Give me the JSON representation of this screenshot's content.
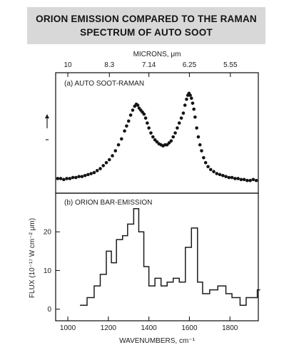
{
  "title": {
    "line1": "ORION EMISSION COMPARED TO THE RAMAN",
    "line2": "SPECTRUM OF AUTO SOOT"
  },
  "chart_data": [
    {
      "type": "scatter",
      "panel_label": "(a) AUTO SOOT-RAMAN",
      "top_axis_label": "MICRONS, μm",
      "top_ticks": [
        {
          "label": "10",
          "wavenumber": 1000
        },
        {
          "label": "8.3",
          "wavenumber": 1205
        },
        {
          "label": "7.14",
          "wavenumber": 1400
        },
        {
          "label": "6.25",
          "wavenumber": 1600
        },
        {
          "label": "5.55",
          "wavenumber": 1802
        }
      ],
      "xlim": [
        940,
        1940
      ],
      "ylabel": "",
      "y_unit": "relative intensity (arbitrary)",
      "ylim": [
        0,
        1
      ],
      "x": [
        950,
        965,
        980,
        995,
        1010,
        1025,
        1040,
        1055,
        1070,
        1085,
        1100,
        1115,
        1130,
        1145,
        1160,
        1175,
        1190,
        1205,
        1220,
        1235,
        1250,
        1265,
        1280,
        1290,
        1300,
        1310,
        1320,
        1330,
        1338,
        1345,
        1352,
        1360,
        1368,
        1376,
        1384,
        1392,
        1400,
        1410,
        1420,
        1430,
        1440,
        1450,
        1460,
        1470,
        1480,
        1490,
        1500,
        1510,
        1520,
        1530,
        1540,
        1550,
        1560,
        1570,
        1578,
        1586,
        1592,
        1598,
        1604,
        1610,
        1616,
        1622,
        1628,
        1636,
        1644,
        1652,
        1660,
        1670,
        1680,
        1692,
        1705,
        1720,
        1735,
        1750,
        1765,
        1780,
        1795,
        1810,
        1825,
        1840,
        1855,
        1870,
        1885,
        1900,
        1915,
        1930
      ],
      "y": [
        0.04,
        0.04,
        0.03,
        0.04,
        0.04,
        0.05,
        0.05,
        0.06,
        0.06,
        0.07,
        0.08,
        0.09,
        0.1,
        0.12,
        0.14,
        0.17,
        0.2,
        0.23,
        0.27,
        0.32,
        0.38,
        0.44,
        0.52,
        0.57,
        0.62,
        0.68,
        0.73,
        0.77,
        0.79,
        0.78,
        0.75,
        0.73,
        0.71,
        0.69,
        0.65,
        0.6,
        0.55,
        0.5,
        0.46,
        0.43,
        0.41,
        0.39,
        0.38,
        0.37,
        0.38,
        0.38,
        0.4,
        0.42,
        0.46,
        0.5,
        0.55,
        0.6,
        0.65,
        0.7,
        0.78,
        0.84,
        0.88,
        0.9,
        0.88,
        0.85,
        0.8,
        0.74,
        0.66,
        0.55,
        0.46,
        0.38,
        0.32,
        0.25,
        0.2,
        0.16,
        0.13,
        0.11,
        0.09,
        0.08,
        0.07,
        0.06,
        0.05,
        0.05,
        0.04,
        0.04,
        0.03,
        0.03,
        0.02,
        0.02,
        0.03,
        0.02
      ]
    },
    {
      "type": "line",
      "step": true,
      "panel_label": "(b) ORION BAR-EMISSION",
      "xlabel": "WAVENUMBERS, cm⁻¹",
      "ylabel": "FLUX (10⁻¹⁷ W cm⁻² μm)",
      "xlim": [
        940,
        1940
      ],
      "ylim": [
        -3,
        30
      ],
      "x_ticks": [
        1000,
        1200,
        1400,
        1600,
        1800
      ],
      "y_ticks": [
        0,
        10,
        20
      ],
      "x": [
        1060,
        1095,
        1130,
        1160,
        1190,
        1215,
        1240,
        1270,
        1295,
        1325,
        1350,
        1375,
        1400,
        1430,
        1460,
        1490,
        1520,
        1550,
        1580,
        1610,
        1640,
        1665,
        1700,
        1740,
        1780,
        1810,
        1850,
        1880,
        1910,
        1935
      ],
      "y": [
        1,
        3,
        6,
        9,
        15,
        12,
        18,
        19,
        22,
        26,
        20,
        11,
        6,
        8,
        6,
        7,
        8,
        7,
        16,
        21,
        7,
        4,
        5,
        6,
        4,
        3,
        1,
        3,
        3,
        5
      ]
    }
  ]
}
